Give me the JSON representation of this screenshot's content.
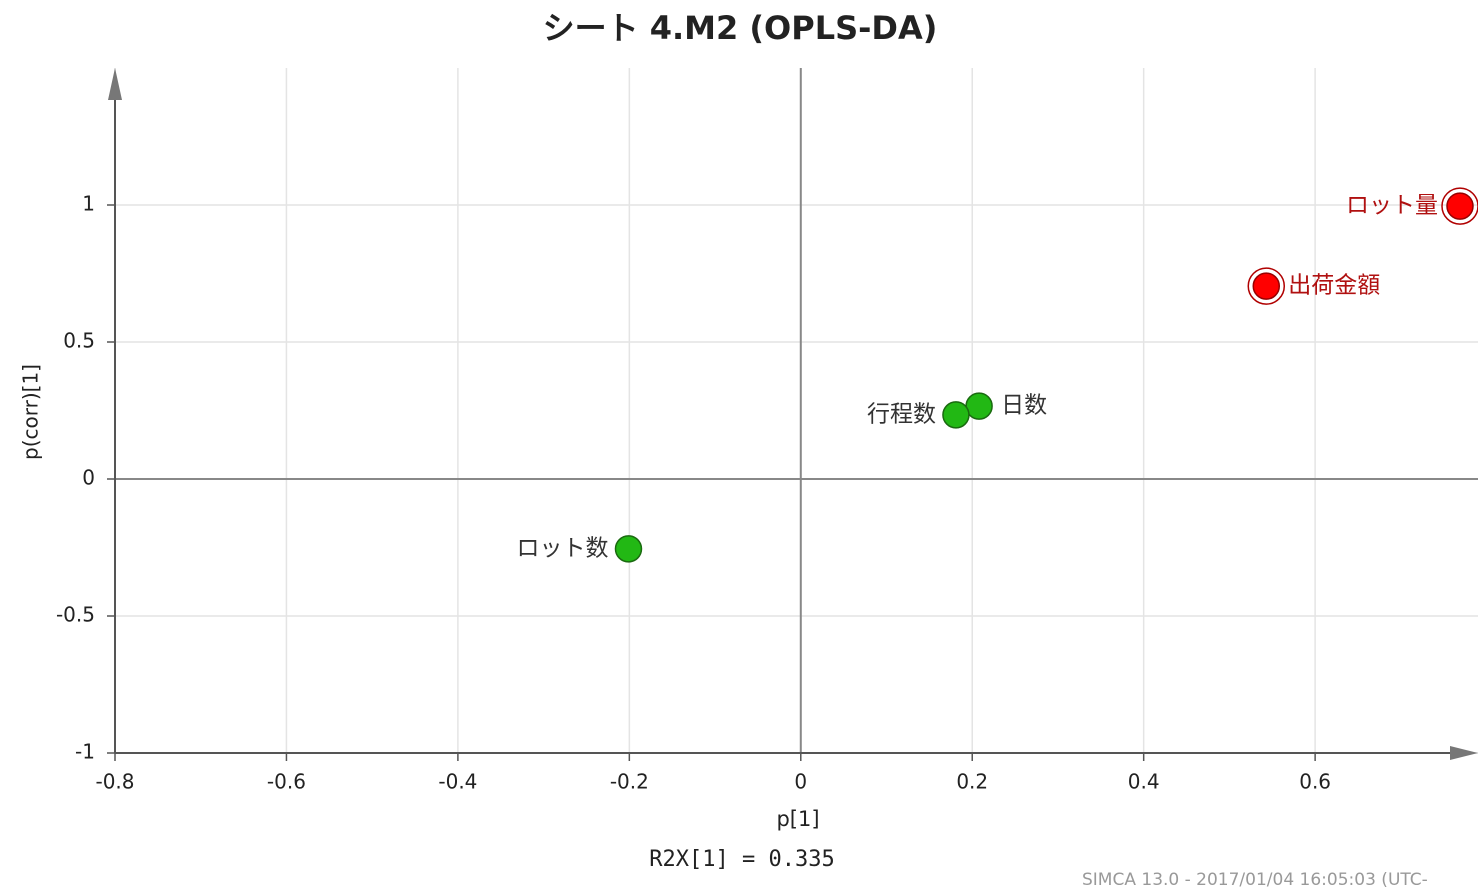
{
  "chart_data": {
    "type": "scatter",
    "title": "シート 4.M2 (OPLS-DA)",
    "x_label": "p[1]",
    "y_label": "p(corr)[1]",
    "annotation": "R2X[1] = 0.335",
    "footer": "SIMCA 13.0 - 2017/01/04 16:05:03 (UTC-",
    "points": [
      {
        "label": "ロット量",
        "x": 0.769,
        "y": 0.996,
        "color": "#ff0000"
      },
      {
        "label": "出荷金額",
        "x": 0.543,
        "y": 0.704,
        "color": "#ff0000"
      },
      {
        "label": "日数",
        "x": 0.208,
        "y": 0.266,
        "color": "#22b814"
      },
      {
        "label": "行程数",
        "x": 0.181,
        "y": 0.234,
        "color": "#22b814"
      },
      {
        "label": "ロット数",
        "x": -0.201,
        "y": -0.255,
        "color": "#22b814"
      }
    ],
    "xlim": [
      -0.8,
      0.79
    ],
    "ylim": [
      -1,
      1.5
    ],
    "xticks": [
      -0.8,
      -0.6,
      -0.4,
      -0.2,
      0,
      0.2,
      0.4,
      0.6
    ],
    "yticks": [
      -1,
      -0.5,
      0,
      0.5,
      1
    ],
    "grid": true
  }
}
